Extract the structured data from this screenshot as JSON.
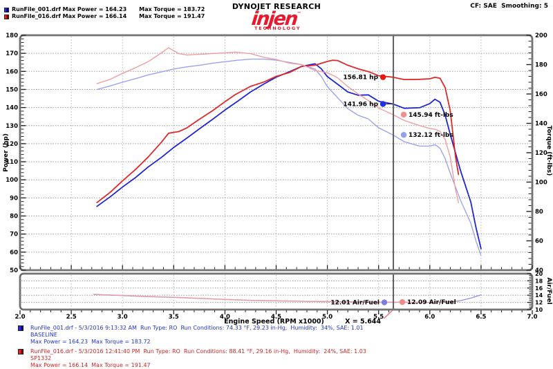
{
  "header": {
    "runs": [
      {
        "label": "RunFile_001.drf Max Power = 164.23",
        "torque": "Max Torque = 183.72",
        "color": "#2a2ae0"
      },
      {
        "label": "RunFile_016.drf Max Power = 166.14",
        "torque": "Max Torque = 191.47",
        "color": "#e62222"
      }
    ],
    "brand": "DYNOJET RESEARCH",
    "logo": "injen",
    "logo_tm": "™",
    "logo_sub": "TECHNOLOGY",
    "cf_label": "CF: SAE  Smoothing: 5"
  },
  "footer": {
    "runs": [
      {
        "line1": "RunFile_001.drf - 5/3/2016 9:13:32 AM  Run Type: RO  Run Conditions: 74.33 °F, 29.23 in-Hg,  Humidity:  34%, SAE: 1.01",
        "line2": "BASELINE",
        "line3": "Max Power = 164.23  Max Torque = 183.72",
        "color": "#2233cc"
      },
      {
        "line1": "RunFile_016.drf - 5/3/2016 12:41:40 PM  Run Type: RO  Run Conditions: 88.41 °F, 29.16 in-Hg,  Humidity:  24%, SAE: 1.03",
        "line2": "SP1332",
        "line3": "Max Power = 166.14  Max Torque = 191.47",
        "color": "#d42222"
      }
    ]
  },
  "chart_data": {
    "type": "line",
    "x_axis": {
      "label": "Engine Speed (RPM x1000)",
      "range": [
        2.0,
        7.0
      ],
      "ticks": [
        "2.0",
        "2.5",
        "3.0",
        "3.5",
        "4.0",
        "4.5",
        "5.0",
        "5.5",
        "6.0",
        "6.5",
        "7.0"
      ]
    },
    "cursor": {
      "x": 5.644,
      "label": "X = 5.644",
      "color": "#5f5f5f",
      "pointer_color": "#e87070"
    },
    "main": {
      "power_axis": {
        "label": "Power (hp)",
        "range": [
          50,
          180
        ],
        "ticks": [
          180,
          170,
          160,
          150,
          140,
          130,
          120,
          110,
          100,
          90,
          80,
          70,
          60,
          50
        ]
      },
      "torque_axis": {
        "label": "Torque (ft-lbs)",
        "range": [
          40,
          200
        ],
        "ticks": [
          200,
          180,
          160,
          140,
          120,
          100,
          80,
          60,
          40
        ]
      },
      "grid": {
        "h_power_step": 10,
        "v_rpm_step": 0.5
      },
      "series": [
        {
          "name": "baseline_power",
          "legend": "RunFile_001 Power",
          "axis": "power",
          "color": "#2024d8",
          "width": 1.8,
          "points": [
            [
              2.75,
              85.3
            ],
            [
              2.88,
              90.6
            ],
            [
              3.0,
              96.0
            ],
            [
              3.13,
              101.4
            ],
            [
              3.25,
              107.1
            ],
            [
              3.38,
              112.4
            ],
            [
              3.5,
              117.9
            ],
            [
              3.63,
              123.2
            ],
            [
              3.75,
              128.2
            ],
            [
              3.88,
              133.5
            ],
            [
              4.0,
              138.6
            ],
            [
              4.13,
              143.7
            ],
            [
              4.25,
              148.6
            ],
            [
              4.38,
              153.0
            ],
            [
              4.5,
              156.8
            ],
            [
              4.63,
              159.8
            ],
            [
              4.75,
              162.8
            ],
            [
              4.88,
              164.2
            ],
            [
              4.94,
              161.5
            ],
            [
              5.0,
              157.1
            ],
            [
              5.1,
              152.9
            ],
            [
              5.2,
              148.6
            ],
            [
              5.3,
              146.8
            ],
            [
              5.4,
              147.0
            ],
            [
              5.5,
              143.5
            ],
            [
              5.64,
              141.96
            ],
            [
              5.75,
              139.6
            ],
            [
              5.9,
              139.9
            ],
            [
              6.0,
              142.2
            ],
            [
              6.05,
              144.6
            ],
            [
              6.1,
              142.9
            ],
            [
              6.15,
              135.8
            ],
            [
              6.2,
              125.1
            ],
            [
              6.3,
              105.0
            ],
            [
              6.4,
              87.7
            ],
            [
              6.45,
              73.7
            ],
            [
              6.5,
              61.9
            ]
          ]
        },
        {
          "name": "baseline_torque",
          "legend": "RunFile_001 Torque",
          "axis": "torque",
          "color": "#9aa2ef",
          "width": 1.4,
          "points": [
            [
              2.75,
              163
            ],
            [
              2.88,
              165.5
            ],
            [
              3.0,
              168
            ],
            [
              3.13,
              170.5
            ],
            [
              3.25,
              173
            ],
            [
              3.38,
              175
            ],
            [
              3.5,
              177
            ],
            [
              3.63,
              178.5
            ],
            [
              3.75,
              179.5
            ],
            [
              3.88,
              181
            ],
            [
              4.0,
              182
            ],
            [
              4.13,
              183
            ],
            [
              4.25,
              183.7
            ],
            [
              4.38,
              183.7
            ],
            [
              4.5,
              183
            ],
            [
              4.63,
              181.5
            ],
            [
              4.75,
              180
            ],
            [
              4.88,
              177
            ],
            [
              4.94,
              172
            ],
            [
              5.0,
              165
            ],
            [
              5.1,
              157.5
            ],
            [
              5.2,
              150
            ],
            [
              5.3,
              145.5
            ],
            [
              5.4,
              143
            ],
            [
              5.5,
              137
            ],
            [
              5.64,
              132.12
            ],
            [
              5.75,
              127.5
            ],
            [
              5.9,
              124.5
            ],
            [
              6.0,
              124.5
            ],
            [
              6.05,
              125.5
            ],
            [
              6.1,
              123
            ],
            [
              6.15,
              116
            ],
            [
              6.2,
              106
            ],
            [
              6.3,
              87.5
            ],
            [
              6.4,
              72
            ],
            [
              6.45,
              60
            ],
            [
              6.5,
              50
            ]
          ]
        },
        {
          "name": "sp1332_power",
          "legend": "RunFile_016 Power",
          "axis": "power",
          "color": "#e02828",
          "width": 1.8,
          "points": [
            [
              2.75,
              87.4
            ],
            [
              2.88,
              93.1
            ],
            [
              3.0,
              99.4
            ],
            [
              3.13,
              105.9
            ],
            [
              3.25,
              112.6
            ],
            [
              3.38,
              120.8
            ],
            [
              3.45,
              125.8
            ],
            [
              3.55,
              126.7
            ],
            [
              3.63,
              128.8
            ],
            [
              3.75,
              133.5
            ],
            [
              3.88,
              138.3
            ],
            [
              4.0,
              143.2
            ],
            [
              4.1,
              147.1
            ],
            [
              4.25,
              151.7
            ],
            [
              4.38,
              154.1
            ],
            [
              4.5,
              157.2
            ],
            [
              4.63,
              159.4
            ],
            [
              4.75,
              162.8
            ],
            [
              4.88,
              163.4
            ],
            [
              5.0,
              165.5
            ],
            [
              5.05,
              166.14
            ],
            [
              5.1,
              166.0
            ],
            [
              5.2,
              163.4
            ],
            [
              5.3,
              161.4
            ],
            [
              5.4,
              159.9
            ],
            [
              5.5,
              157.6
            ],
            [
              5.64,
              156.81
            ],
            [
              5.75,
              155.5
            ],
            [
              5.9,
              155.6
            ],
            [
              6.0,
              155.9
            ],
            [
              6.05,
              156.7
            ],
            [
              6.1,
              156.2
            ],
            [
              6.15,
              151.0
            ],
            [
              6.2,
              138.1
            ],
            [
              6.25,
              113.0
            ],
            [
              6.28,
              102.9
            ]
          ]
        },
        {
          "name": "sp1332_torque",
          "legend": "RunFile_016 Torque",
          "axis": "torque",
          "color": "#f29e9e",
          "width": 1.4,
          "points": [
            [
              2.75,
              167
            ],
            [
              2.88,
              170
            ],
            [
              3.0,
              174
            ],
            [
              3.13,
              178
            ],
            [
              3.25,
              182
            ],
            [
              3.38,
              188
            ],
            [
              3.45,
              191.47
            ],
            [
              3.55,
              187.5
            ],
            [
              3.63,
              186.5
            ],
            [
              3.75,
              187
            ],
            [
              3.88,
              187.5
            ],
            [
              4.0,
              188
            ],
            [
              4.1,
              188.5
            ],
            [
              4.25,
              187.5
            ],
            [
              4.38,
              185
            ],
            [
              4.5,
              183.5
            ],
            [
              4.63,
              181
            ],
            [
              4.75,
              180
            ],
            [
              4.88,
              176
            ],
            [
              5.0,
              174.5
            ],
            [
              5.05,
              172.8
            ],
            [
              5.1,
              171
            ],
            [
              5.2,
              165
            ],
            [
              5.3,
              160
            ],
            [
              5.4,
              155.5
            ],
            [
              5.5,
              150.5
            ],
            [
              5.64,
              145.94
            ],
            [
              5.75,
              142
            ],
            [
              5.9,
              138.5
            ],
            [
              6.0,
              136.5
            ],
            [
              6.05,
              136
            ],
            [
              6.1,
              134.5
            ],
            [
              6.15,
              129
            ],
            [
              6.2,
              117
            ],
            [
              6.25,
              95
            ],
            [
              6.28,
              86
            ]
          ]
        }
      ],
      "callouts": [
        {
          "label": "156.81 hp",
          "axis": "power",
          "value": 156.81,
          "side": "left",
          "dot": "#e81616",
          "connector": false
        },
        {
          "label": "141.96 hp",
          "axis": "power",
          "value": 141.96,
          "side": "left",
          "dot": "#2230e0",
          "connector": true
        },
        {
          "label": "145.94 ft-lbs",
          "axis": "torque",
          "value": 145.94,
          "side": "right",
          "dot": "#ef8f8f",
          "connector": false
        },
        {
          "label": "132.12 ft-lbs",
          "axis": "torque",
          "value": 132.12,
          "side": "right",
          "dot": "#92a0ee",
          "connector": false
        }
      ]
    },
    "sub": {
      "af_axis": {
        "label": "Air/Fuel",
        "range": [
          10,
          20
        ],
        "ticks": [
          20,
          18,
          16,
          14,
          12,
          10
        ]
      },
      "grid": {
        "h_af_lines": [
          18,
          16,
          14,
          12
        ]
      },
      "series": [
        {
          "name": "baseline_af",
          "legend": "RunFile_001 Air/Fuel",
          "color": "#8a90ea",
          "width": 1.3,
          "points": [
            [
              2.72,
              14.2
            ],
            [
              3.0,
              13.9
            ],
            [
              3.25,
              13.6
            ],
            [
              3.5,
              13.4
            ],
            [
              3.75,
              13.1
            ],
            [
              4.0,
              12.8
            ],
            [
              4.25,
              12.55
            ],
            [
              4.5,
              12.4
            ],
            [
              4.75,
              12.3
            ],
            [
              5.0,
              12.2
            ],
            [
              5.25,
              12.1
            ],
            [
              5.5,
              12.02
            ],
            [
              5.64,
              12.01
            ],
            [
              5.75,
              12.0
            ],
            [
              6.0,
              12.0
            ],
            [
              6.1,
              12.05
            ],
            [
              6.2,
              12.2
            ],
            [
              6.3,
              12.5
            ],
            [
              6.4,
              13.2
            ],
            [
              6.5,
              14.1
            ]
          ]
        },
        {
          "name": "sp1332_af",
          "legend": "RunFile_016 Air/Fuel",
          "color": "#f09a9a",
          "width": 1.3,
          "points": [
            [
              2.72,
              14.25
            ],
            [
              3.0,
              13.95
            ],
            [
              3.25,
              13.65
            ],
            [
              3.5,
              13.45
            ],
            [
              3.75,
              13.15
            ],
            [
              4.0,
              12.85
            ],
            [
              4.25,
              12.6
            ],
            [
              4.5,
              12.45
            ],
            [
              4.75,
              12.3
            ],
            [
              5.0,
              12.25
            ],
            [
              5.25,
              12.15
            ],
            [
              5.5,
              12.1
            ],
            [
              5.64,
              12.09
            ],
            [
              5.75,
              12.05
            ],
            [
              6.0,
              12.0
            ],
            [
              6.1,
              12.1
            ],
            [
              6.28,
              12.3
            ]
          ]
        }
      ],
      "callouts": [
        {
          "label": "12.01 Air/Fuel",
          "value": 12.01,
          "side": "left",
          "dot": "#7d7de0"
        },
        {
          "label": "12.09 Air/Fuel",
          "value": 12.09,
          "side": "right",
          "dot": "#ee8a8a"
        }
      ]
    }
  }
}
